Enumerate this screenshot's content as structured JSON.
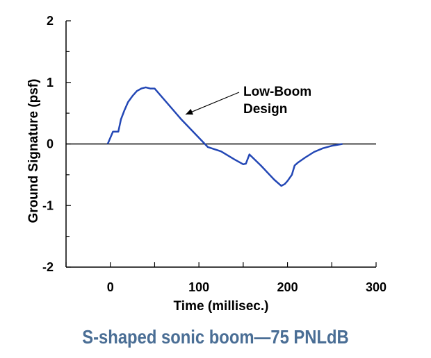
{
  "chart_data": {
    "type": "line",
    "title": "",
    "xlabel": "Time (millisec.)",
    "ylabel": "Ground Signature (psf)",
    "xlim": [
      -50,
      300
    ],
    "ylim": [
      -2,
      2
    ],
    "x_ticks": [
      0,
      100,
      200,
      300
    ],
    "x_tick_labels": [
      "0",
      "100",
      "200",
      "300"
    ],
    "y_ticks": [
      -2,
      -1,
      0,
      1,
      2
    ],
    "y_tick_labels": [
      "-2",
      "-1",
      "0",
      "1",
      "2"
    ],
    "grid": false,
    "zero_line": true,
    "series": [
      {
        "color": "#2347b5",
        "x": [
          -3,
          0,
          3,
          6,
          9,
          12,
          16,
          20,
          25,
          30,
          35,
          40,
          45,
          50,
          80,
          110,
          125,
          140,
          150,
          153,
          157,
          170,
          185,
          193,
          197,
          200,
          205,
          208,
          212,
          220,
          230,
          240,
          250,
          262
        ],
        "y": [
          0,
          0.1,
          0.2,
          0.2,
          0.2,
          0.4,
          0.55,
          0.68,
          0.78,
          0.86,
          0.9,
          0.92,
          0.9,
          0.9,
          0.4,
          -0.05,
          -0.12,
          -0.25,
          -0.33,
          -0.32,
          -0.17,
          -0.35,
          -0.58,
          -0.68,
          -0.65,
          -0.6,
          -0.5,
          -0.35,
          -0.3,
          -0.22,
          -0.13,
          -0.07,
          -0.03,
          0
        ]
      }
    ],
    "annotations": [
      {
        "lines": [
          "Low-Boom",
          "Design"
        ],
        "arrow_to": {
          "x": 85,
          "y": 0.48
        }
      }
    ]
  },
  "caption": "S-shaped sonic boom—75 PNLdB"
}
